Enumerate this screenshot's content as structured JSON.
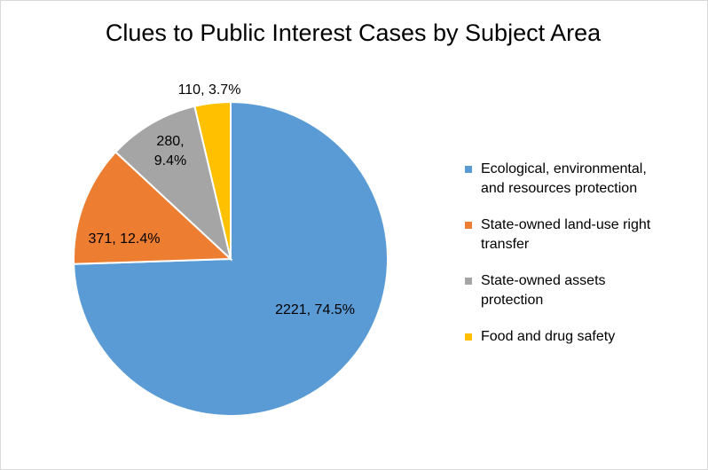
{
  "chart_data": {
    "type": "pie",
    "title": "Clues to Public Interest Cases by Subject Area",
    "slices": [
      {
        "name": "Ecological, environmental, and resources protection",
        "legend_lines": [
          "Ecological, environmental,",
          "and resources protection"
        ],
        "value": 2221,
        "percent": 74.5,
        "label_lines": [
          "2221, 74.5%"
        ],
        "color": "#5b9bd5"
      },
      {
        "name": "State-owned land-use right transfer",
        "legend_lines": [
          "State-owned land-use right",
          "transfer"
        ],
        "value": 371,
        "percent": 12.4,
        "label_lines": [
          "371, 12.4%"
        ],
        "color": "#ed7d31"
      },
      {
        "name": "State-owned assets protection",
        "legend_lines": [
          "State-owned assets",
          "protection"
        ],
        "value": 280,
        "percent": 9.4,
        "label_lines": [
          "280,",
          "9.4%"
        ],
        "color": "#a5a5a5"
      },
      {
        "name": "Food and drug safety",
        "legend_lines": [
          "Food and drug safety"
        ],
        "value": 110,
        "percent": 3.7,
        "label_lines": [
          "110, 3.7%"
        ],
        "color": "#ffc000"
      }
    ],
    "start_angle": "12 o'clock",
    "direction": "clockwise",
    "legend_position": "right"
  }
}
